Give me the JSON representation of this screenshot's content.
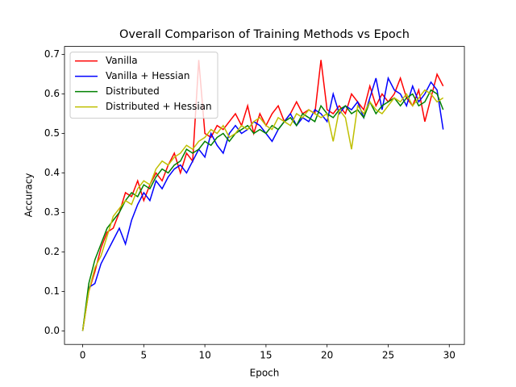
{
  "chart_data": {
    "type": "line",
    "title": "Overall Comparison of Training Methods vs Epoch",
    "x_label": "Epoch",
    "y_label": "Accuracy",
    "x": [
      0,
      0.5,
      1,
      1.5,
      2,
      2.5,
      3,
      3.5,
      4,
      4.5,
      5,
      5.5,
      6,
      6.5,
      7,
      7.5,
      8,
      8.5,
      9,
      9.5,
      10,
      10.5,
      11,
      11.5,
      12,
      12.5,
      13,
      13.5,
      14,
      14.5,
      15,
      15.5,
      16,
      16.5,
      17,
      17.5,
      18,
      18.5,
      19,
      19.5,
      20,
      20.5,
      21,
      21.5,
      22,
      22.5,
      23,
      23.5,
      24,
      24.5,
      25,
      25.5,
      26,
      26.5,
      27,
      27.5,
      28,
      28.5,
      29,
      29.5
    ],
    "series": [
      {
        "name": "Vanilla",
        "color": "#ff0000",
        "values": [
          0,
          0.1,
          0.15,
          0.21,
          0.25,
          0.26,
          0.3,
          0.35,
          0.34,
          0.38,
          0.33,
          0.37,
          0.4,
          0.38,
          0.42,
          0.45,
          0.4,
          0.45,
          0.43,
          0.686,
          0.5,
          0.49,
          0.52,
          0.51,
          0.53,
          0.55,
          0.52,
          0.57,
          0.5,
          0.55,
          0.52,
          0.55,
          0.57,
          0.53,
          0.55,
          0.58,
          0.55,
          0.56,
          0.55,
          0.686,
          0.56,
          0.55,
          0.57,
          0.55,
          0.6,
          0.58,
          0.56,
          0.62,
          0.57,
          0.6,
          0.58,
          0.6,
          0.64,
          0.59,
          0.57,
          0.61,
          0.53,
          0.59,
          0.65,
          0.62
        ]
      },
      {
        "name": "Vanilla + Hessian",
        "color": "#0000ff",
        "values": [
          0,
          0.11,
          0.12,
          0.17,
          0.2,
          0.23,
          0.26,
          0.22,
          0.28,
          0.32,
          0.35,
          0.33,
          0.38,
          0.36,
          0.39,
          0.41,
          0.42,
          0.4,
          0.43,
          0.46,
          0.44,
          0.5,
          0.47,
          0.45,
          0.5,
          0.52,
          0.5,
          0.51,
          0.53,
          0.52,
          0.5,
          0.48,
          0.51,
          0.53,
          0.55,
          0.52,
          0.54,
          0.53,
          0.56,
          0.55,
          0.53,
          0.6,
          0.55,
          0.57,
          0.56,
          0.58,
          0.54,
          0.59,
          0.64,
          0.56,
          0.64,
          0.61,
          0.6,
          0.57,
          0.62,
          0.58,
          0.6,
          0.63,
          0.61,
          0.51
        ]
      },
      {
        "name": "Distributed",
        "color": "#008000",
        "values": [
          0,
          0.12,
          0.18,
          0.22,
          0.26,
          0.28,
          0.3,
          0.33,
          0.35,
          0.34,
          0.37,
          0.36,
          0.39,
          0.41,
          0.4,
          0.42,
          0.43,
          0.46,
          0.45,
          0.46,
          0.48,
          0.47,
          0.49,
          0.5,
          0.48,
          0.5,
          0.51,
          0.52,
          0.5,
          0.51,
          0.5,
          0.52,
          0.51,
          0.53,
          0.54,
          0.52,
          0.55,
          0.54,
          0.53,
          0.57,
          0.55,
          0.54,
          0.56,
          0.57,
          0.55,
          0.56,
          0.54,
          0.58,
          0.55,
          0.57,
          0.58,
          0.59,
          0.57,
          0.59,
          0.6,
          0.57,
          0.58,
          0.61,
          0.6,
          0.56
        ]
      },
      {
        "name": "Distributed + Hessian",
        "color": "#bfbf00",
        "values": [
          0,
          0.1,
          0.16,
          0.19,
          0.24,
          0.29,
          0.31,
          0.33,
          0.32,
          0.36,
          0.38,
          0.37,
          0.41,
          0.43,
          0.42,
          0.44,
          0.45,
          0.47,
          0.46,
          0.48,
          0.49,
          0.51,
          0.5,
          0.52,
          0.49,
          0.5,
          0.52,
          0.51,
          0.53,
          0.54,
          0.52,
          0.51,
          0.54,
          0.53,
          0.52,
          0.55,
          0.54,
          0.56,
          0.55,
          0.54,
          0.55,
          0.48,
          0.56,
          0.54,
          0.46,
          0.57,
          0.55,
          0.58,
          0.56,
          0.55,
          0.57,
          0.59,
          0.58,
          0.6,
          0.57,
          0.59,
          0.61,
          0.6,
          0.58,
          0.59
        ]
      }
    ],
    "xlim": [
      -1.4875,
      31.2375
    ],
    "ylim": [
      -0.0343,
      0.7203
    ],
    "xticks": [
      0,
      5,
      10,
      15,
      20,
      25,
      30
    ],
    "yticks": [
      {
        "value": 0,
        "label": "0.0"
      },
      {
        "value": 0.1,
        "label": "0.1"
      },
      {
        "value": 0.2,
        "label": "0.2"
      },
      {
        "value": 0.3,
        "label": "0.3"
      },
      {
        "value": 0.4,
        "label": "0.4"
      },
      {
        "value": 0.5,
        "label": "0.5"
      },
      {
        "value": 0.6,
        "label": "0.6"
      },
      {
        "value": 0.7,
        "label": "0.7"
      }
    ],
    "legend": "upper left",
    "grid": false
  }
}
